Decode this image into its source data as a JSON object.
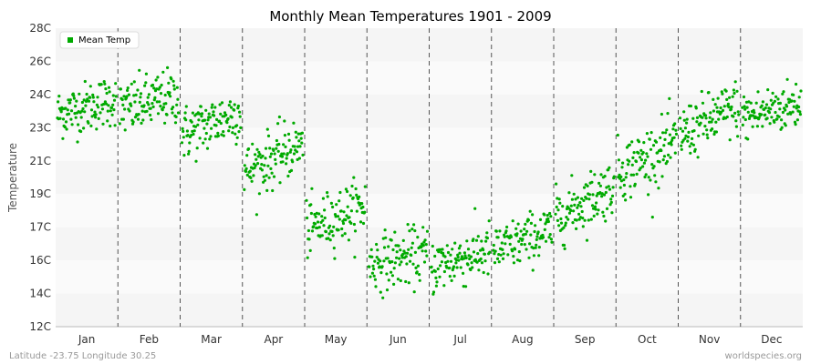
{
  "chart_data": {
    "type": "scatter",
    "title": "Monthly Mean Temperatures 1901 - 2009",
    "ylabel": "Temperature",
    "xlabel": "",
    "categories": [
      "Jan",
      "Feb",
      "Mar",
      "Apr",
      "May",
      "Jun",
      "Jul",
      "Aug",
      "Sep",
      "Oct",
      "Nov",
      "Dec"
    ],
    "y_ticks": [
      "12C",
      "14C",
      "16C",
      "17C",
      "19C",
      "21C",
      "23C",
      "24C",
      "26C",
      "28C"
    ],
    "ylim": [
      12,
      28
    ],
    "grid": "horizontal bands with dashed month separators",
    "legend": {
      "position": "top-left",
      "entries": [
        "Mean Temp"
      ]
    },
    "colors": {
      "series": "#00aa00",
      "band_a": "#f5f5f5",
      "band_b": "#fafafa",
      "separator": "#555555"
    },
    "series": [
      {
        "name": "Mean Temp",
        "monthly_stats": [
          {
            "month": "Jan",
            "center_start": 23.4,
            "center_end": 24.2,
            "spread": 0.9
          },
          {
            "month": "Feb",
            "center_start": 23.6,
            "center_end": 24.4,
            "spread": 1.0
          },
          {
            "month": "Mar",
            "center_start": 22.3,
            "center_end": 23.5,
            "spread": 1.0
          },
          {
            "month": "Apr",
            "center_start": 20.3,
            "center_end": 21.8,
            "spread": 1.0
          },
          {
            "month": "May",
            "center_start": 17.2,
            "center_end": 18.5,
            "spread": 1.0
          },
          {
            "month": "Jun",
            "center_start": 15.4,
            "center_end": 15.9,
            "spread": 1.0
          },
          {
            "month": "Jul",
            "center_start": 15.2,
            "center_end": 16.1,
            "spread": 1.0
          },
          {
            "month": "Aug",
            "center_start": 16.0,
            "center_end": 17.2,
            "spread": 0.9
          },
          {
            "month": "Sep",
            "center_start": 17.8,
            "center_end": 19.6,
            "spread": 1.0
          },
          {
            "month": "Oct",
            "center_start": 20.3,
            "center_end": 21.8,
            "spread": 1.1
          },
          {
            "month": "Nov",
            "center_start": 22.3,
            "center_end": 23.8,
            "spread": 1.0
          },
          {
            "month": "Dec",
            "center_start": 23.2,
            "center_end": 24.0,
            "spread": 0.9
          }
        ],
        "years": [
          1901,
          2009
        ]
      }
    ]
  },
  "footer": {
    "location": "Latitude -23.75 Longitude 30.25",
    "credit": "worldspecies.org"
  }
}
